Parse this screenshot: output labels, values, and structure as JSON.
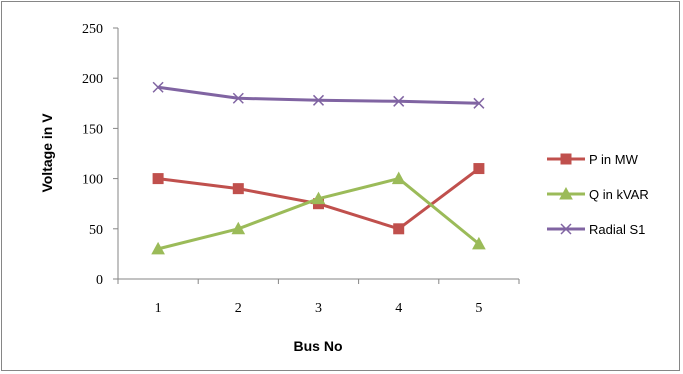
{
  "chart_data": {
    "type": "line",
    "title": "",
    "xlabel": "Bus No",
    "ylabel": "Voltage in V",
    "categories": [
      "1",
      "2",
      "3",
      "4",
      "5"
    ],
    "ylim": [
      0,
      250
    ],
    "yticks": [
      0,
      50,
      100,
      150,
      200,
      250
    ],
    "grid": false,
    "legend_position": "right",
    "series": [
      {
        "name": "P in MW",
        "values": [
          100,
          90,
          75,
          50,
          110
        ],
        "color": "#c0504d",
        "marker": "square"
      },
      {
        "name": "Q in kVAR",
        "values": [
          30,
          50,
          80,
          100,
          35
        ],
        "color": "#9bbb59",
        "marker": "triangle"
      },
      {
        "name": "Radial S1",
        "values": [
          191,
          180,
          178,
          177,
          175
        ],
        "color": "#8064a2",
        "marker": "x"
      }
    ]
  }
}
